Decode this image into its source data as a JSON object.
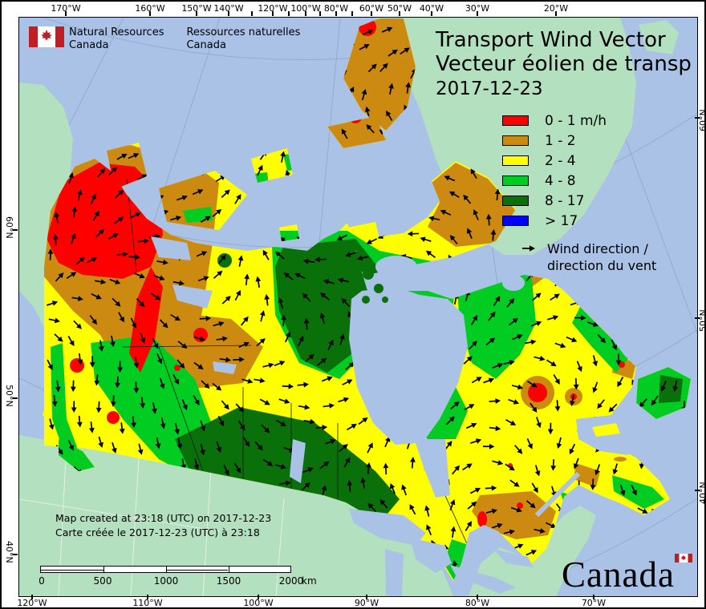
{
  "header": {
    "org_en_line1": "Natural Resources",
    "org_en_line2": "Canada",
    "org_fr_line1": "Ressources naturelles",
    "org_fr_line2": "Canada"
  },
  "title": {
    "line_en": "Transport Wind Vector",
    "line_fr": "Vecteur éolien de transp",
    "date": "2017-12-23"
  },
  "legend": {
    "classes": [
      {
        "label": "0 - 1 m/h",
        "color": "#FF0000"
      },
      {
        "label": "1 - 2",
        "color": "#CC8A10"
      },
      {
        "label": "2 - 4",
        "color": "#FFFF00"
      },
      {
        "label": "4 - 8",
        "color": "#00CC22"
      },
      {
        "label": "8 - 17",
        "color": "#0A700A"
      },
      {
        "label": "> 17",
        "color": "#0000FF"
      }
    ],
    "wind_direction_en": "Wind direction /",
    "wind_direction_fr": "direction du vent"
  },
  "axis_labels": {
    "top": [
      "170°W",
      "160°W",
      "150°W",
      "140°W",
      "120°W",
      "100°W",
      "80°W",
      "60°W",
      "50°W",
      "40°W",
      "30°W",
      "20°W"
    ],
    "bottom": [
      "120°W",
      "110°W",
      "100°W",
      "90°W",
      "80°W",
      "70°W"
    ],
    "left": [
      "60°N",
      "50°N",
      "40°N"
    ],
    "right": [
      "60°N",
      "50°N",
      "40°N"
    ]
  },
  "footer": {
    "created_en": "Map created at 23:18 (UTC) on 2017-12-23",
    "created_fr": "Carte créée le 2017-12-23 (UTC) à 23:18"
  },
  "scalebar": {
    "labels": [
      "0",
      "500",
      "1000",
      "1500",
      "2000"
    ],
    "unit": "km"
  },
  "wordmark": "Canada",
  "map": {
    "colors": {
      "ocean": "#A9C2E6",
      "foreign_land": "#B3E0BE",
      "arrow": "#000000",
      "graticule": "#93ABCF"
    }
  }
}
